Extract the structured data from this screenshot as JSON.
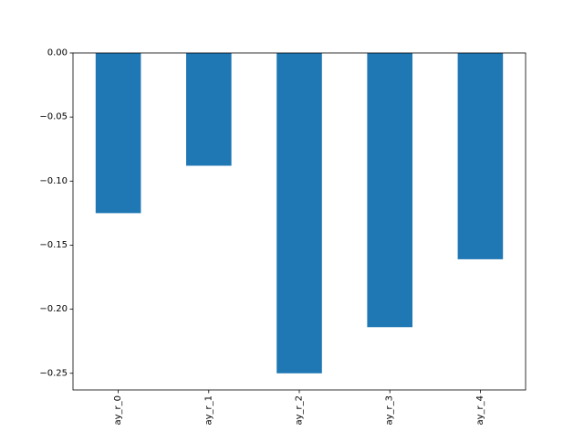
{
  "chart_data": {
    "type": "bar",
    "categories": [
      "ay_r_0",
      "ay_r_1",
      "ay_r_2",
      "ay_r_3",
      "ay_r_4"
    ],
    "values": [
      -0.125,
      -0.088,
      -0.25,
      -0.214,
      -0.161
    ],
    "ylim": [
      -0.263,
      0.0
    ],
    "yticks": [
      0.0,
      -0.05,
      -0.1,
      -0.15,
      -0.2,
      -0.25
    ],
    "ytick_labels": [
      "0.00",
      "−0.05",
      "−0.10",
      "−0.15",
      "−0.20",
      "−0.25"
    ],
    "bar_color": "#1f77b4",
    "grid": false,
    "legend": "none",
    "xtick_rotation": "vertical"
  }
}
